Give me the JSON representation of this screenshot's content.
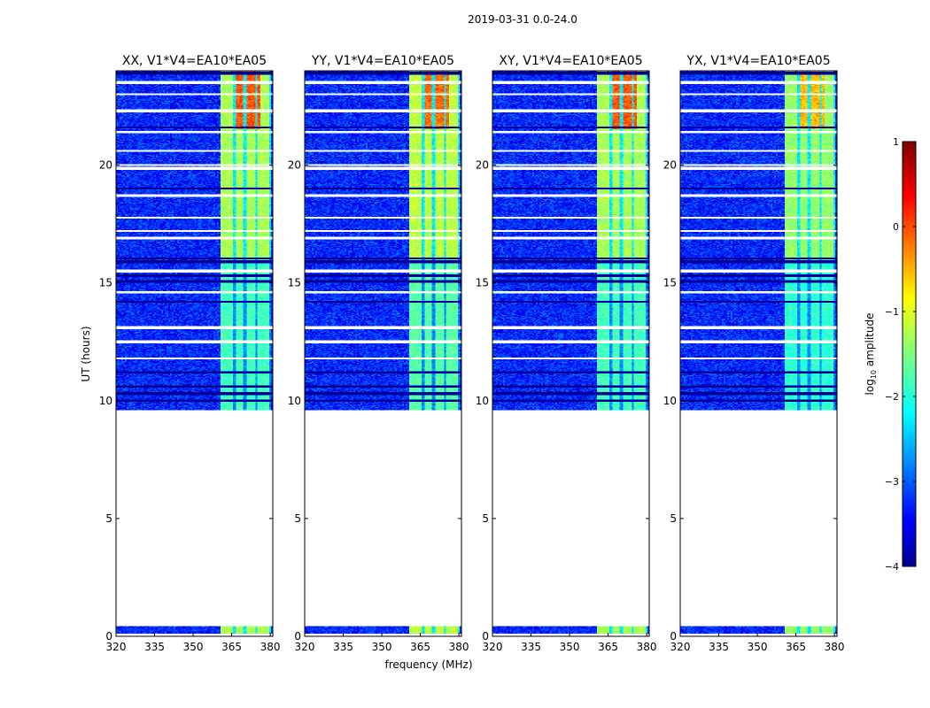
{
  "chart_data": {
    "type": "heatmap",
    "suptitle": "2019-03-31 0.0-24.0",
    "xlabel": "frequency (MHz)",
    "ylabel": "UT (hours)",
    "xlim": [
      320,
      381
    ],
    "ylim": [
      0,
      24
    ],
    "xticks": [
      320,
      335,
      350,
      365,
      380
    ],
    "yticks": [
      0,
      5,
      10,
      15,
      20
    ],
    "panels": [
      {
        "title": "XX, V1*V4=EA10*EA05",
        "band_level": -1.3,
        "hot_level": 0.1
      },
      {
        "title": "YY, V1*V4=EA10*EA05",
        "band_level": -1.2,
        "hot_level": 0.0
      },
      {
        "title": "XY, V1*V4=EA10*EA05",
        "band_level": -1.3,
        "hot_level": 0.1
      },
      {
        "title": "YX, V1*V4=EA10*EA05",
        "band_level": -1.4,
        "hot_level": -0.4
      }
    ],
    "colorbar": {
      "label": "log10 amplitude",
      "range": [
        -4,
        1
      ],
      "ticks": [
        1,
        0,
        -1,
        -2,
        -3,
        -4
      ]
    },
    "background_level": -3.2,
    "rfi_band_mhz": [
      361,
      380
    ],
    "rfi_channels_mhz": [
      [
        361,
        365.5
      ],
      [
        366.5,
        369.5
      ],
      [
        370.5,
        374.5
      ],
      [
        375,
        379.5
      ]
    ],
    "data_segments_ut": [
      [
        0.1,
        0.45
      ],
      [
        9.6,
        24.0
      ]
    ],
    "gaps_ut": [
      [
        0.45,
        9.6
      ]
    ],
    "flagged_rows_ut": [
      17.2,
      20.0,
      19.85,
      17.75,
      18.7,
      23.0,
      23.5,
      22.3,
      21.4,
      20.6,
      12.5,
      13.1,
      11.8,
      14.6,
      15.5,
      16.9
    ],
    "dark_rows_ut": [
      15.3,
      15.05,
      14.2,
      15.9,
      16.05,
      11.2,
      10.6,
      10.3,
      10.0,
      23.9,
      21.6,
      19.0
    ]
  }
}
